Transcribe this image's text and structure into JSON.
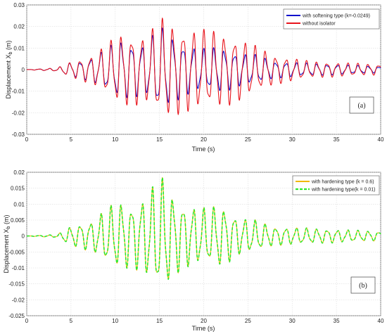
{
  "chart_data": [
    {
      "type": "line",
      "panel_label": "(a)",
      "xlabel": "Time (s)",
      "ylabel": "Displacement X",
      "ylabel_sub": "b",
      "ylabel_unit": " (m)",
      "xlim": [
        0,
        40
      ],
      "ylim": [
        -0.03,
        0.03
      ],
      "xticks": [
        0,
        5,
        10,
        15,
        20,
        25,
        30,
        35,
        40
      ],
      "yticks": [
        -0.03,
        -0.02,
        -0.01,
        0,
        0.01,
        0.02,
        0.03
      ],
      "grid": true,
      "legend_position": "top-right",
      "series": [
        {
          "name": "with softening type (k=-0.0249)",
          "color": "#1010cc",
          "dashed": false,
          "amplitude_envelope": [
            [
              0,
              0
            ],
            [
              3.5,
              0.0008
            ],
            [
              4.5,
              0.003
            ],
            [
              6,
              0.004
            ],
            [
              7.5,
              0.006
            ],
            [
              9,
              0.01
            ],
            [
              10.5,
              0.014
            ],
            [
              12,
              0.013
            ],
            [
              13.5,
              0.012
            ],
            [
              14.5,
              0.018
            ],
            [
              15.5,
              0.02
            ],
            [
              16.5,
              0.016
            ],
            [
              18,
              0.012
            ],
            [
              20,
              0.01
            ],
            [
              22,
              0.011
            ],
            [
              24,
              0.008
            ],
            [
              26,
              0.007
            ],
            [
              28,
              0.004
            ],
            [
              32,
              0.003
            ],
            [
              40,
              0.0015
            ]
          ]
        },
        {
          "name": "without isolator",
          "color": "#e8141c",
          "dashed": false,
          "amplitude_envelope": [
            [
              0,
              0
            ],
            [
              3.5,
              0.0008
            ],
            [
              4.5,
              0.003
            ],
            [
              6,
              0.005
            ],
            [
              7.5,
              0.007
            ],
            [
              9,
              0.012
            ],
            [
              10.5,
              0.017
            ],
            [
              12,
              0.017
            ],
            [
              13.5,
              0.016
            ],
            [
              14.5,
              0.021
            ],
            [
              15.5,
              0.025
            ],
            [
              16.5,
              0.022
            ],
            [
              18,
              0.02
            ],
            [
              20,
              0.019
            ],
            [
              22,
              0.018
            ],
            [
              24,
              0.015
            ],
            [
              26,
              0.011
            ],
            [
              28,
              0.007
            ],
            [
              32,
              0.004
            ],
            [
              40,
              0.0025
            ]
          ]
        }
      ]
    },
    {
      "type": "line",
      "panel_label": "(b)",
      "xlabel": "Time (s)",
      "ylabel": "Displacement X",
      "ylabel_sub": "b",
      "ylabel_unit": " (m)",
      "xlim": [
        0,
        40
      ],
      "ylim": [
        -0.025,
        0.02
      ],
      "xticks": [
        0,
        5,
        10,
        15,
        20,
        25,
        30,
        35,
        40
      ],
      "yticks": [
        -0.025,
        -0.02,
        -0.015,
        -0.01,
        -0.005,
        0,
        0.005,
        0.01,
        0.015,
        0.02
      ],
      "grid": true,
      "legend_position": "top-right",
      "series": [
        {
          "name": "with hardening type (k = 0.6)",
          "color": "#f0b800",
          "dashed": false,
          "amplitude_envelope": [
            [
              0,
              0
            ],
            [
              3.5,
              0.0005
            ],
            [
              4.5,
              0.0025
            ],
            [
              6,
              0.004
            ],
            [
              7.5,
              0.005
            ],
            [
              9,
              0.009
            ],
            [
              10.5,
              0.011
            ],
            [
              12,
              0.01
            ],
            [
              13.5,
              0.013
            ],
            [
              14.5,
              0.017
            ],
            [
              15.5,
              0.019
            ],
            [
              16.5,
              0.013
            ],
            [
              18,
              0.01
            ],
            [
              20,
              0.009
            ],
            [
              22,
              0.01
            ],
            [
              24,
              0.006
            ],
            [
              26,
              0.005
            ],
            [
              28,
              0.003
            ],
            [
              32,
              0.0025
            ],
            [
              40,
              0.0015
            ]
          ]
        },
        {
          "name": "with hardening type(k = 0.01)",
          "color": "#2ee82e",
          "dashed": true,
          "amplitude_envelope": [
            [
              0,
              0
            ],
            [
              3.5,
              0.0005
            ],
            [
              4.5,
              0.0025
            ],
            [
              6,
              0.004
            ],
            [
              7.5,
              0.005
            ],
            [
              9,
              0.009
            ],
            [
              10.5,
              0.011
            ],
            [
              12,
              0.01
            ],
            [
              13.5,
              0.013
            ],
            [
              14.5,
              0.017
            ],
            [
              15.5,
              0.019
            ],
            [
              16.5,
              0.013
            ],
            [
              18,
              0.01
            ],
            [
              20,
              0.009
            ],
            [
              22,
              0.01
            ],
            [
              24,
              0.006
            ],
            [
              26,
              0.005
            ],
            [
              28,
              0.003
            ],
            [
              32,
              0.0025
            ],
            [
              40,
              0.0015
            ]
          ]
        }
      ]
    }
  ]
}
